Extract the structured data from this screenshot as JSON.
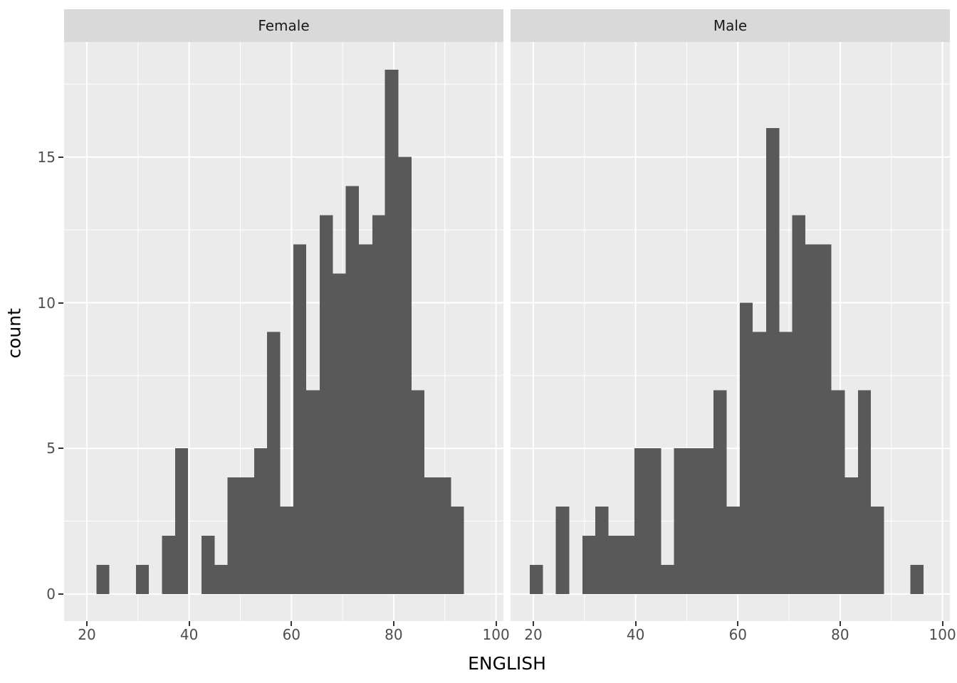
{
  "chart_data": {
    "type": "histogram",
    "title": "",
    "xlabel": "ENGLISH",
    "ylabel": "count",
    "facet_labels": [
      "Female",
      "Male"
    ],
    "x_ticks": [
      20,
      40,
      60,
      80,
      100
    ],
    "y_ticks": [
      0,
      5,
      10,
      15
    ],
    "x_minor_ticks": [
      30,
      50,
      70,
      90
    ],
    "y_minor_ticks": [
      2.5,
      7.5,
      12.5,
      17.5
    ],
    "xlim": [
      15.55,
      101.45
    ],
    "ylim": [
      -0.93,
      18.95
    ],
    "bin_width": 2.57,
    "bins_format": "[x_from, x_to, count]",
    "facets": [
      {
        "label": "Female",
        "bins": [
          [
            21.9,
            24.4,
            1
          ],
          [
            29.6,
            32.1,
            1
          ],
          [
            34.7,
            37.3,
            2
          ],
          [
            37.3,
            39.8,
            5
          ],
          [
            42.4,
            45.0,
            2
          ],
          [
            45.0,
            47.5,
            1
          ],
          [
            47.5,
            50.1,
            4
          ],
          [
            50.1,
            52.7,
            4
          ],
          [
            52.7,
            55.2,
            5
          ],
          [
            55.2,
            57.8,
            9
          ],
          [
            57.8,
            60.4,
            3
          ],
          [
            60.4,
            62.9,
            12
          ],
          [
            62.9,
            65.5,
            7
          ],
          [
            65.5,
            68.1,
            13
          ],
          [
            68.1,
            70.6,
            11
          ],
          [
            70.6,
            73.2,
            14
          ],
          [
            73.2,
            75.8,
            12
          ],
          [
            75.8,
            78.3,
            13
          ],
          [
            78.3,
            80.9,
            18
          ],
          [
            80.9,
            83.5,
            15
          ],
          [
            83.5,
            86.0,
            7
          ],
          [
            86.0,
            88.6,
            4
          ],
          [
            88.6,
            91.2,
            4
          ],
          [
            91.2,
            93.7,
            3
          ]
        ]
      },
      {
        "label": "Male",
        "bins": [
          [
            19.3,
            21.9,
            1
          ],
          [
            24.4,
            27.0,
            3
          ],
          [
            29.6,
            32.1,
            2
          ],
          [
            32.1,
            34.7,
            3
          ],
          [
            34.7,
            37.3,
            2
          ],
          [
            37.3,
            39.8,
            2
          ],
          [
            39.8,
            42.4,
            5
          ],
          [
            42.4,
            45.0,
            5
          ],
          [
            45.0,
            47.5,
            1
          ],
          [
            47.5,
            50.1,
            5
          ],
          [
            50.1,
            52.7,
            5
          ],
          [
            52.7,
            55.2,
            5
          ],
          [
            55.2,
            57.8,
            7
          ],
          [
            57.8,
            60.4,
            3
          ],
          [
            60.4,
            62.9,
            10
          ],
          [
            62.9,
            65.5,
            9
          ],
          [
            65.5,
            68.1,
            16
          ],
          [
            68.1,
            70.6,
            9
          ],
          [
            70.6,
            73.2,
            13
          ],
          [
            73.2,
            75.8,
            12
          ],
          [
            75.8,
            78.3,
            12
          ],
          [
            78.3,
            80.9,
            7
          ],
          [
            80.9,
            83.5,
            4
          ],
          [
            83.5,
            86.0,
            7
          ],
          [
            86.0,
            88.6,
            3
          ],
          [
            93.7,
            96.3,
            1
          ]
        ]
      }
    ],
    "colors": {
      "bar": "#595959",
      "panel_bg": "#ebebeb",
      "strip_bg": "#d9d9d9",
      "grid": "#ffffff",
      "tick_text": "#4d4d4d",
      "strip_text": "#1a1a1a",
      "title_text": "#000000",
      "tick_mark": "#333333"
    },
    "legend": "none",
    "grid": "on"
  }
}
